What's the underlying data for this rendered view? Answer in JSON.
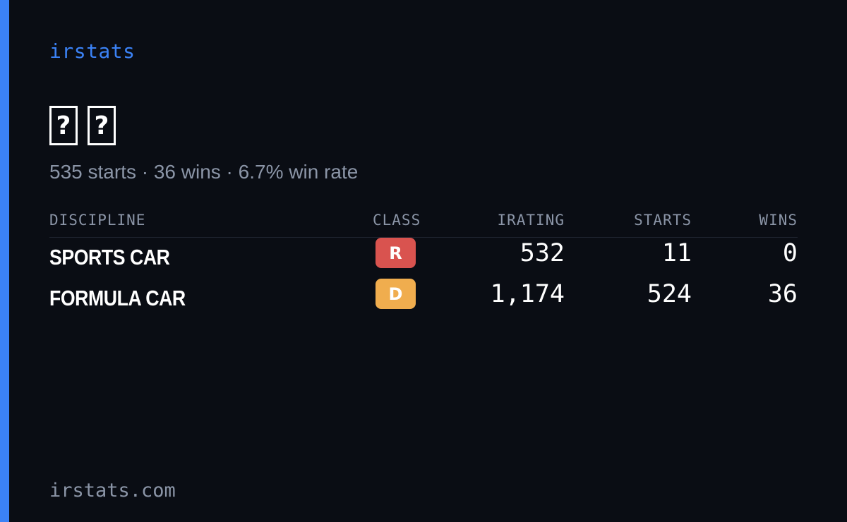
{
  "brand": "irstats",
  "profile": {
    "name_glyphs": [
      "?",
      "?"
    ],
    "summary": "535 starts · 36 wins · 6.7% win rate"
  },
  "table": {
    "headers": {
      "discipline": "DISCIPLINE",
      "class": "CLASS",
      "irating": "IRATING",
      "starts": "STARTS",
      "wins": "WINS"
    },
    "rows": [
      {
        "discipline": "SPORTS CAR",
        "class": "R",
        "class_color": "#d9534f",
        "irating": "532",
        "starts": "11",
        "wins": "0"
      },
      {
        "discipline": "FORMULA CAR",
        "class": "D",
        "class_color": "#f0ad4e",
        "irating": "1,174",
        "starts": "524",
        "wins": "36"
      }
    ]
  },
  "footer": "irstats.com",
  "colors": {
    "background": "#0a0d14",
    "accent": "#3b82f6",
    "muted_text": "#8b95a7",
    "text": "#ffffff"
  }
}
